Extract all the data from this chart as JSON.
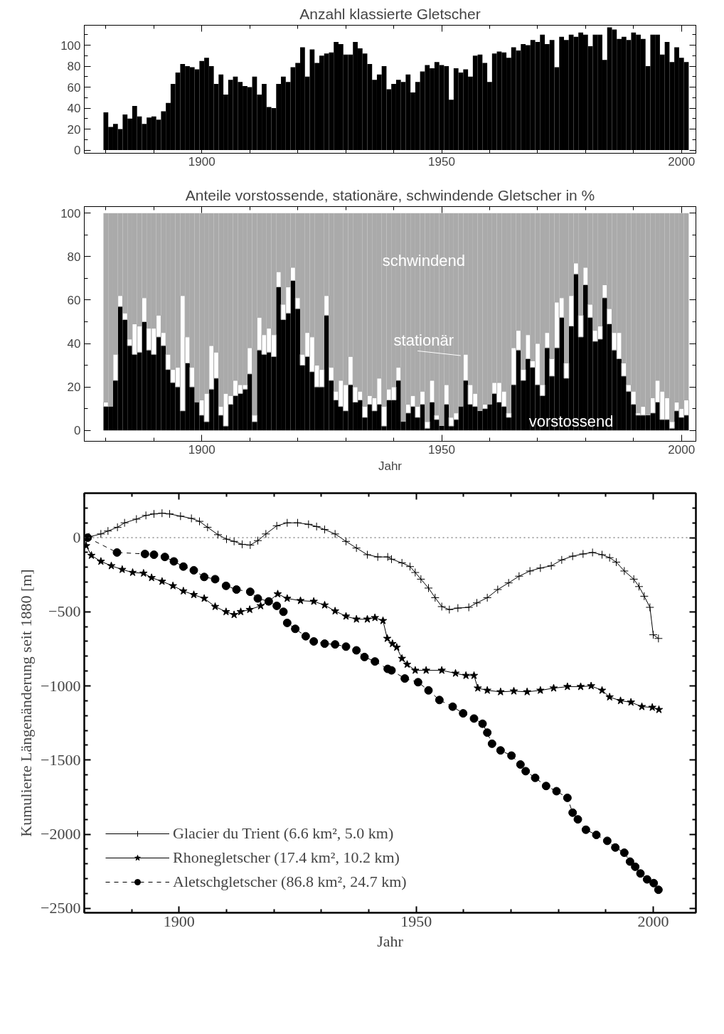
{
  "chart_data": [
    {
      "type": "bar",
      "title": "Anzahl klassierte Gletscher",
      "x": [
        1880,
        1881,
        1882,
        1883,
        1884,
        1885,
        1886,
        1887,
        1888,
        1889,
        1890,
        1891,
        1892,
        1893,
        1894,
        1895,
        1896,
        1897,
        1898,
        1899,
        1900,
        1901,
        1902,
        1903,
        1904,
        1905,
        1906,
        1907,
        1908,
        1909,
        1910,
        1911,
        1912,
        1913,
        1914,
        1915,
        1916,
        1917,
        1918,
        1919,
        1920,
        1921,
        1922,
        1923,
        1924,
        1925,
        1926,
        1927,
        1928,
        1929,
        1930,
        1931,
        1932,
        1933,
        1934,
        1935,
        1936,
        1937,
        1938,
        1939,
        1940,
        1941,
        1942,
        1943,
        1944,
        1945,
        1946,
        1947,
        1948,
        1949,
        1950,
        1951,
        1952,
        1953,
        1954,
        1955,
        1956,
        1957,
        1958,
        1959,
        1960,
        1961,
        1962,
        1963,
        1964,
        1965,
        1966,
        1967,
        1968,
        1969,
        1970,
        1971,
        1972,
        1973,
        1974,
        1975,
        1976,
        1977,
        1978,
        1979,
        1980,
        1981,
        1982,
        1983,
        1984,
        1985,
        1986,
        1987,
        1988,
        1989,
        1990,
        1991,
        1992,
        1993,
        1994,
        1995,
        1996,
        1997,
        1998,
        1999,
        2000,
        2001
      ],
      "values": [
        36,
        22,
        25,
        20,
        34,
        30,
        42,
        32,
        25,
        31,
        32,
        29,
        37,
        45,
        63,
        74,
        82,
        80,
        79,
        77,
        85,
        88,
        80,
        63,
        72,
        53,
        67,
        70,
        65,
        61,
        60,
        70,
        53,
        63,
        41,
        40,
        63,
        70,
        65,
        79,
        83,
        98,
        70,
        96,
        83,
        90,
        92,
        93,
        103,
        101,
        91,
        91,
        103,
        97,
        92,
        82,
        67,
        72,
        80,
        58,
        63,
        67,
        65,
        72,
        55,
        65,
        75,
        81,
        78,
        84,
        81,
        80,
        48,
        78,
        74,
        77,
        70,
        90,
        91,
        83,
        65,
        92,
        94,
        93,
        88,
        98,
        95,
        101,
        100,
        105,
        103,
        110,
        101,
        105,
        79,
        108,
        105,
        110,
        108,
        112,
        110,
        99,
        110,
        110,
        86,
        117,
        115,
        106,
        108,
        105,
        112,
        110,
        106,
        80,
        110,
        110,
        91,
        103,
        84,
        98,
        88,
        84
      ],
      "color": "#000000",
      "xlim": [
        1875.5,
        2003
      ],
      "ylim": [
        -3,
        119
      ],
      "xticks": [
        {
          "value": 1880,
          "label": null
        },
        {
          "value": 1890,
          "label": null
        },
        1900,
        {
          "value": 1910,
          "label": null
        },
        {
          "value": 1920,
          "label": null
        },
        {
          "value": 1930,
          "label": null
        },
        {
          "value": 1940,
          "label": null
        },
        1950,
        {
          "value": 1960,
          "label": null
        },
        {
          "value": 1970,
          "label": null
        },
        {
          "value": 1980,
          "label": null
        },
        {
          "value": 1990,
          "label": null
        },
        2000
      ],
      "yticks": [
        0,
        {
          "value": 10,
          "label": null
        },
        20,
        {
          "value": 30,
          "label": null
        },
        40,
        {
          "value": 50,
          "label": null
        },
        60,
        {
          "value": 70,
          "label": null
        },
        80,
        {
          "value": 90,
          "label": null
        },
        100,
        {
          "value": 110,
          "label": null
        }
      ],
      "grid": false
    },
    {
      "type": "bar",
      "stacked": true,
      "title": "Anteile vorstossende, stationäre, schwindende Gletscher in %",
      "xlabel": "Jahr",
      "x": [
        1880,
        1881,
        1882,
        1883,
        1884,
        1885,
        1886,
        1887,
        1888,
        1889,
        1890,
        1891,
        1892,
        1893,
        1894,
        1895,
        1896,
        1897,
        1898,
        1899,
        1900,
        1901,
        1902,
        1903,
        1904,
        1905,
        1906,
        1907,
        1908,
        1909,
        1910,
        1911,
        1912,
        1913,
        1914,
        1915,
        1916,
        1917,
        1918,
        1919,
        1920,
        1921,
        1922,
        1923,
        1924,
        1925,
        1926,
        1927,
        1928,
        1929,
        1930,
        1931,
        1932,
        1933,
        1934,
        1935,
        1936,
        1937,
        1938,
        1939,
        1940,
        1941,
        1942,
        1943,
        1944,
        1945,
        1946,
        1947,
        1948,
        1949,
        1950,
        1951,
        1952,
        1953,
        1954,
        1955,
        1956,
        1957,
        1958,
        1959,
        1960,
        1961,
        1962,
        1963,
        1964,
        1965,
        1966,
        1967,
        1968,
        1969,
        1970,
        1971,
        1972,
        1973,
        1974,
        1975,
        1976,
        1977,
        1978,
        1979,
        1980,
        1981,
        1982,
        1983,
        1984,
        1985,
        1986,
        1987,
        1988,
        1989,
        1990,
        1991,
        1992,
        1993,
        1994,
        1995,
        1996,
        1997,
        1998,
        1999,
        2000,
        2001
      ],
      "series": [
        {
          "name": "vorstossend",
          "color": "#000000",
          "values": [
            11,
            11,
            23,
            57,
            51,
            39,
            35,
            36,
            50,
            37,
            35,
            43,
            39,
            28,
            22,
            20,
            9,
            31,
            20,
            13,
            7,
            4,
            19,
            24,
            7,
            2,
            12,
            16,
            17,
            19,
            26,
            4,
            37,
            35,
            36,
            34,
            66,
            51,
            54,
            69,
            56,
            30,
            34,
            27,
            20,
            20,
            53,
            23,
            14,
            11,
            9,
            21,
            13,
            14,
            6,
            12,
            9,
            12,
            2,
            14,
            14,
            23,
            4,
            8,
            11,
            6,
            12,
            1,
            13,
            5,
            2,
            12,
            2,
            5,
            11,
            23,
            12,
            11,
            9,
            10,
            12,
            17,
            13,
            11,
            6,
            21,
            37,
            23,
            33,
            29,
            21,
            16,
            38,
            25,
            38,
            52,
            24,
            48,
            72,
            43,
            67,
            52,
            41,
            42,
            61,
            49,
            37,
            33,
            25,
            18,
            12,
            7,
            7,
            7,
            8,
            13,
            5,
            5,
            1,
            9,
            6,
            7
          ]
        },
        {
          "name": "stationär",
          "color": "#ffffff",
          "values": [
            2,
            0,
            12,
            5,
            3,
            3,
            14,
            12,
            11,
            10,
            12,
            10,
            6,
            7,
            6,
            9,
            53,
            12,
            9,
            0,
            7,
            13,
            20,
            12,
            4,
            15,
            4,
            7,
            4,
            2,
            12,
            3,
            15,
            9,
            11,
            10,
            7,
            7,
            12,
            6,
            5,
            5,
            11,
            16,
            10,
            8,
            9,
            6,
            4,
            12,
            12,
            13,
            7,
            4,
            5,
            4,
            6,
            12,
            9,
            5,
            6,
            6,
            0,
            4,
            5,
            5,
            6,
            3,
            10,
            2,
            0,
            9,
            4,
            3,
            0,
            12,
            9,
            6,
            0,
            2,
            0,
            5,
            9,
            7,
            2,
            17,
            9,
            5,
            11,
            3,
            19,
            5,
            7,
            8,
            21,
            9,
            7,
            14,
            5,
            10,
            8,
            6,
            5,
            6,
            6,
            7,
            8,
            12,
            6,
            3,
            6,
            1,
            4,
            0,
            7,
            10,
            13,
            10,
            3,
            4,
            4,
            7
          ]
        },
        {
          "name": "schwindend",
          "color": "#aaaaaa",
          "values": [
            87,
            89,
            65,
            38,
            46,
            58,
            51,
            52,
            39,
            53,
            53,
            47,
            55,
            65,
            72,
            71,
            38,
            57,
            71,
            87,
            86,
            83,
            61,
            64,
            89,
            83,
            84,
            77,
            79,
            79,
            62,
            93,
            48,
            56,
            53,
            56,
            27,
            42,
            34,
            25,
            39,
            65,
            55,
            57,
            70,
            72,
            38,
            71,
            82,
            77,
            79,
            66,
            80,
            82,
            89,
            84,
            85,
            76,
            89,
            81,
            80,
            71,
            96,
            88,
            84,
            89,
            82,
            96,
            77,
            93,
            98,
            79,
            94,
            92,
            89,
            65,
            79,
            83,
            91,
            88,
            88,
            78,
            78,
            82,
            92,
            62,
            54,
            72,
            56,
            68,
            60,
            79,
            55,
            67,
            41,
            39,
            69,
            38,
            23,
            47,
            25,
            42,
            54,
            52,
            33,
            44,
            55,
            55,
            69,
            79,
            82,
            92,
            89,
            93,
            85,
            77,
            82,
            85,
            96,
            87,
            90,
            86
          ]
        }
      ],
      "xlim": [
        1875.5,
        2003
      ],
      "ylim": [
        -5,
        103
      ],
      "xticks": [
        {
          "value": 1880,
          "label": null
        },
        {
          "value": 1890,
          "label": null
        },
        1900,
        {
          "value": 1910,
          "label": null
        },
        {
          "value": 1920,
          "label": null
        },
        {
          "value": 1930,
          "label": null
        },
        {
          "value": 1940,
          "label": null
        },
        1950,
        {
          "value": 1960,
          "label": null
        },
        {
          "value": 1970,
          "label": null
        },
        {
          "value": 1980,
          "label": null
        },
        {
          "value": 1990,
          "label": null
        },
        2000
      ],
      "yticks": [
        0,
        {
          "value": 10,
          "label": null
        },
        20,
        {
          "value": 30,
          "label": null
        },
        40,
        {
          "value": 50,
          "label": null
        },
        60,
        {
          "value": 70,
          "label": null
        },
        80,
        {
          "value": 90,
          "label": null
        },
        100
      ],
      "grid": false
    },
    {
      "type": "line",
      "xlabel": "Jahr",
      "ylabel": "Kumulierte Längenänderung seit 1880 [m]",
      "series": [
        {
          "name": "Glacier du Trient (6.6 km², 5.0 km)",
          "color": "#000000",
          "marker": "cross",
          "line_style": "solid",
          "x": [
            1880,
            1881,
            1883.5,
            1885,
            1887,
            1888.5,
            1891,
            1893,
            1894.7,
            1896.4,
            1898,
            1900.3,
            1902.6,
            1904.3,
            1906,
            1908.2,
            1910,
            1911.6,
            1913.3,
            1915,
            1916.6,
            1918.3,
            1920.6,
            1922.8,
            1925,
            1927.3,
            1929,
            1930.7,
            1932.9,
            1935.2,
            1937.4,
            1939.7,
            1941.9,
            1944,
            1944.8,
            1947,
            1948.7,
            1949.8,
            1951,
            1952.6,
            1954,
            1955.4,
            1957,
            1958.8,
            1961.1,
            1962.8,
            1965,
            1967.2,
            1969.5,
            1971.7,
            1974,
            1976.2,
            1978.5,
            1980.7,
            1983,
            1985.2,
            1987.2,
            1989.2,
            1990.8,
            1992.2,
            1993.9,
            1995.9,
            1997,
            1998.1,
            1999.3,
            2000,
            2001.1
          ],
          "values": [
            0,
            5,
            25,
            45,
            70,
            100,
            125,
            150,
            160,
            165,
            160,
            145,
            130,
            110,
            70,
            20,
            -10,
            -25,
            -45,
            -50,
            -20,
            25,
            80,
            100,
            100,
            90,
            75,
            55,
            25,
            -25,
            -70,
            -115,
            -130,
            -130,
            -145,
            -170,
            -195,
            -235,
            -280,
            -340,
            -405,
            -465,
            -485,
            -475,
            -470,
            -440,
            -405,
            -350,
            -305,
            -260,
            -225,
            -205,
            -190,
            -150,
            -125,
            -110,
            -100,
            -115,
            -135,
            -165,
            -225,
            -280,
            -330,
            -395,
            -470,
            -655,
            -680
          ]
        },
        {
          "name": "Rhonegletscher (17.4 km², 10.2 km)",
          "color": "#000000",
          "marker": "star",
          "line_style": "solid",
          "x": [
            1880.4,
            1881.5,
            1883.5,
            1885.7,
            1888,
            1890.2,
            1892.5,
            1894.2,
            1896.4,
            1898.7,
            1900.9,
            1903.1,
            1905.3,
            1907.6,
            1909.9,
            1911.6,
            1913,
            1914.9,
            1917.2,
            1918.9,
            1920.8,
            1922.8,
            1925.6,
            1928.4,
            1930.7,
            1932.9,
            1935.2,
            1937.4,
            1939.7,
            1941.3,
            1943,
            1943.9,
            1945,
            1945.9,
            1947,
            1948.1,
            1949.8,
            1952.1,
            1955.4,
            1958.3,
            1960.5,
            1962.2,
            1963,
            1965,
            1967.8,
            1970.6,
            1973.4,
            1976.2,
            1979,
            1981.9,
            1984.7,
            1986.9,
            1989.2,
            1990.8,
            1993.1,
            1995.3,
            1997.6,
            1999.8,
            2001.2
          ],
          "values": [
            -55,
            -120,
            -160,
            -190,
            -215,
            -235,
            -240,
            -270,
            -295,
            -325,
            -360,
            -385,
            -410,
            -465,
            -500,
            -520,
            -500,
            -485,
            -460,
            -430,
            -380,
            -410,
            -425,
            -430,
            -455,
            -495,
            -530,
            -550,
            -550,
            -540,
            -560,
            -680,
            -715,
            -740,
            -815,
            -855,
            -895,
            -895,
            -895,
            -915,
            -930,
            -930,
            -1015,
            -1030,
            -1040,
            -1035,
            -1040,
            -1030,
            -1015,
            -1005,
            -1005,
            -1000,
            -1030,
            -1075,
            -1100,
            -1110,
            -1140,
            -1145,
            -1160
          ]
        },
        {
          "name": "Aletschgletscher (86.8 km², 24.7 km)",
          "color": "#000000",
          "marker": "circle",
          "line_style": "dashed",
          "x": [
            1880.7,
            1886.9,
            1892.8,
            1894.7,
            1897,
            1898.9,
            1900.9,
            1903.1,
            1905.3,
            1907.6,
            1909.9,
            1912.1,
            1915,
            1916.6,
            1918.9,
            1920.6,
            1922,
            1922.8,
            1924.5,
            1926.7,
            1928.4,
            1930.7,
            1932.9,
            1935.2,
            1937.4,
            1939.1,
            1941.3,
            1944,
            1944.8,
            1947.6,
            1950.4,
            1952.6,
            1954.9,
            1957.7,
            1959.9,
            1962.2,
            1964,
            1965,
            1966,
            1967.8,
            1970.1,
            1972,
            1973.1,
            1975.1,
            1977.4,
            1979.6,
            1981.9,
            1983,
            1984.1,
            1985.8,
            1988,
            1990.3,
            1992,
            1993.9,
            1995.1,
            1996.2,
            1997.3,
            1998.7,
            2000.1,
            2001.1
          ],
          "values": [
            0,
            -100,
            -110,
            -115,
            -130,
            -160,
            -195,
            -220,
            -265,
            -280,
            -325,
            -350,
            -365,
            -410,
            -430,
            -460,
            -500,
            -575,
            -615,
            -665,
            -700,
            -715,
            -720,
            -735,
            -760,
            -805,
            -835,
            -885,
            -895,
            -950,
            -975,
            -1030,
            -1095,
            -1140,
            -1185,
            -1220,
            -1255,
            -1315,
            -1390,
            -1435,
            -1470,
            -1530,
            -1575,
            -1620,
            -1675,
            -1710,
            -1755,
            -1855,
            -1900,
            -1970,
            -2005,
            -2045,
            -2090,
            -2125,
            -2185,
            -2220,
            -2265,
            -2305,
            -2330,
            -2375
          ]
        }
      ],
      "ref_lines": [
        {
          "axis": "y",
          "value": 0,
          "line_style": "dotted",
          "color": "#555555"
        }
      ],
      "xlim": [
        1880,
        2009
      ],
      "ylim": [
        -2530,
        300
      ],
      "xticks": [
        {
          "value": 1880,
          "label": null
        },
        {
          "value": 1890,
          "label": null
        },
        1900,
        {
          "value": 1910,
          "label": null
        },
        {
          "value": 1920,
          "label": null
        },
        {
          "value": 1930,
          "label": null
        },
        {
          "value": 1940,
          "label": null
        },
        1950,
        {
          "value": 1960,
          "label": null
        },
        {
          "value": 1970,
          "label": null
        },
        {
          "value": 1980,
          "label": null
        },
        {
          "value": 1990,
          "label": null
        },
        2000
      ],
      "yticks": [
        {
          "value": -2500,
          "label": "−2500"
        },
        {
          "value": -2400,
          "label": null
        },
        {
          "value": -2300,
          "label": null
        },
        {
          "value": -2200,
          "label": null
        },
        {
          "value": -2100,
          "label": null
        },
        {
          "value": -2000,
          "label": "−2000"
        },
        {
          "value": -1900,
          "label": null
        },
        {
          "value": -1800,
          "label": null
        },
        {
          "value": -1700,
          "label": null
        },
        {
          "value": -1600,
          "label": null
        },
        {
          "value": -1500,
          "label": "−1500"
        },
        {
          "value": -1400,
          "label": null
        },
        {
          "value": -1300,
          "label": null
        },
        {
          "value": -1200,
          "label": null
        },
        {
          "value": -1100,
          "label": null
        },
        {
          "value": -1000,
          "label": "−1000"
        },
        {
          "value": -900,
          "label": null
        },
        {
          "value": -800,
          "label": null
        },
        {
          "value": -700,
          "label": null
        },
        {
          "value": -600,
          "label": null
        },
        {
          "value": -500,
          "label": "−500"
        },
        {
          "value": -400,
          "label": null
        },
        {
          "value": -300,
          "label": null
        },
        {
          "value": -200,
          "label": null
        },
        {
          "value": -100,
          "label": null
        },
        0,
        {
          "value": 100,
          "label": null
        },
        {
          "value": 200,
          "label": null
        }
      ],
      "grid": false,
      "legend": "bottom left"
    }
  ]
}
